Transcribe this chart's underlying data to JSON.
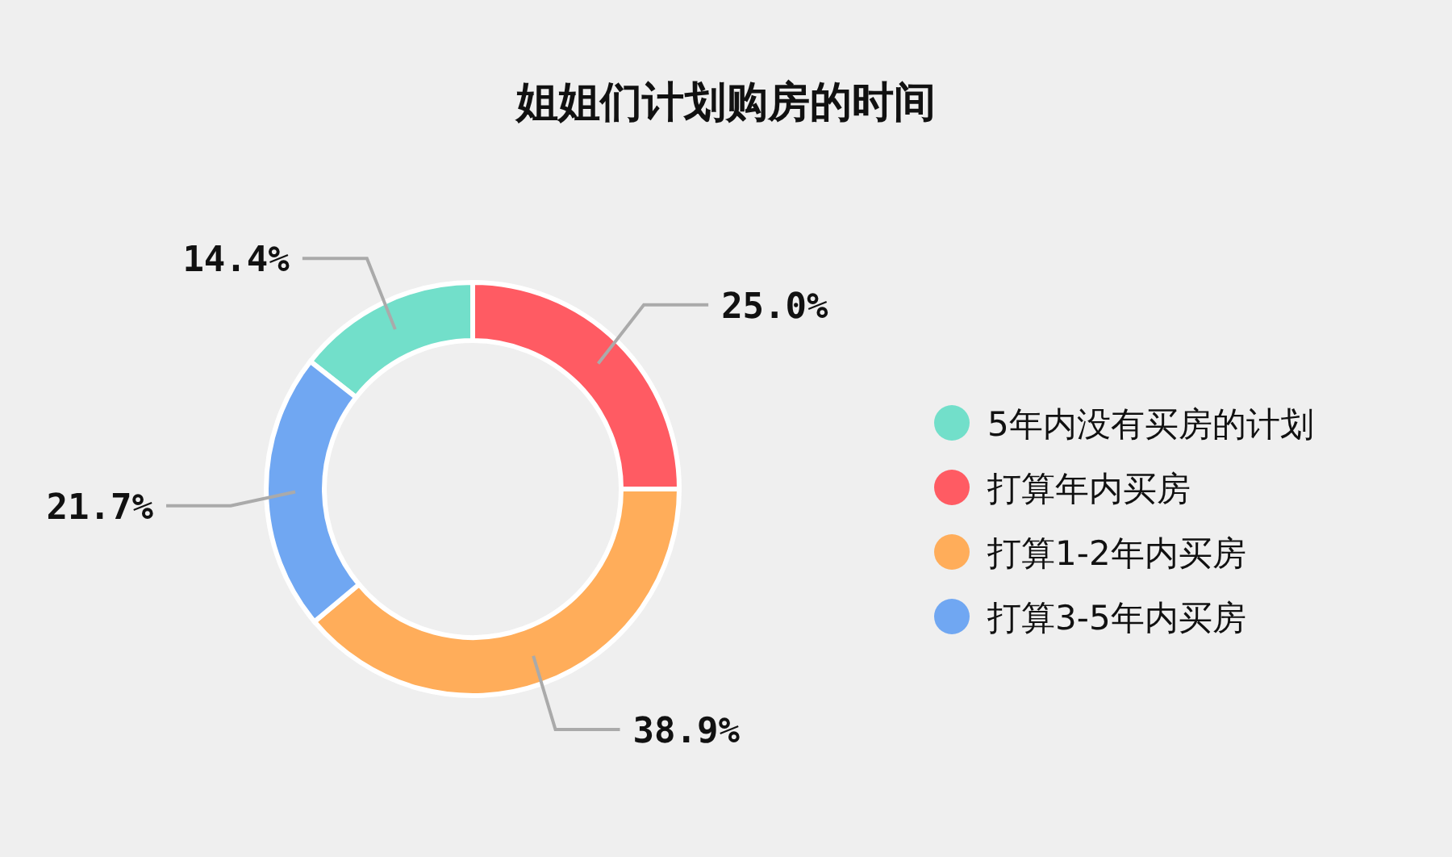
{
  "chart_data": {
    "type": "donut",
    "title": "姐姐们计划购房的时间",
    "categories": [
      "5年内没有买房的计划",
      "打算年内买房",
      "打算1-2年内买房",
      "打算3-5年内买房"
    ],
    "values": [
      14.4,
      25.0,
      38.9,
      21.7
    ],
    "colors": [
      "#72dfca",
      "#ff5b63",
      "#ffad5a",
      "#70a7f2"
    ],
    "value_labels": [
      "14.4%",
      "25.0%",
      "38.9%",
      "21.7%"
    ],
    "legend": "right"
  }
}
